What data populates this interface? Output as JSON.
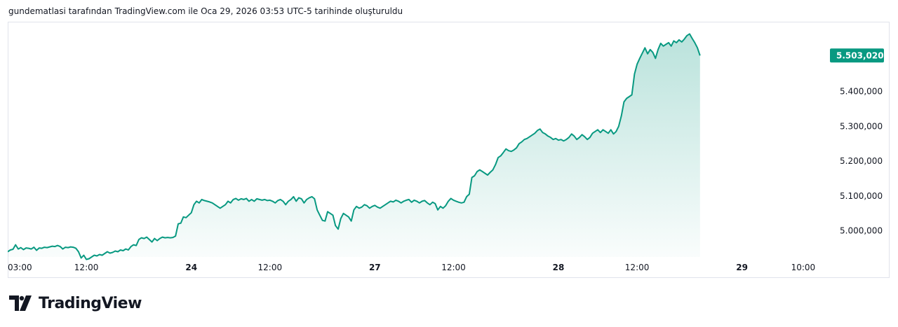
{
  "caption": "gundematlasi tarafından TradingView.com ile Oca 29, 2026 03:53 UTC-5 tarihinde oluşturuldu",
  "brand": {
    "name": "TradingView",
    "logo_icon": "tradingview-logo-icon"
  },
  "colors": {
    "line": "#089981",
    "fill_top": "#089981",
    "price_tag_bg": "#089981",
    "axis_text": "#131722",
    "frame": "#e0e3eb"
  },
  "chart_data": {
    "type": "area",
    "title": "",
    "xlabel": "",
    "ylabel": "",
    "y_range": [
      4925000,
      5600000
    ],
    "grid": false,
    "legend": "none",
    "current_price": 5503020,
    "current_price_label": "5.503,020",
    "y_ticks": [
      {
        "value": 5400000,
        "label": "5.400,000"
      },
      {
        "value": 5300000,
        "label": "5.300,000"
      },
      {
        "value": 5200000,
        "label": "5.200,000"
      },
      {
        "value": 5100000,
        "label": "5.100,000"
      },
      {
        "value": 5000000,
        "label": "5.000,000"
      }
    ],
    "x_ticks": [
      {
        "t": 0,
        "label": "03:00",
        "bold": false
      },
      {
        "t": 9,
        "label": "12:00",
        "bold": false
      },
      {
        "t": 21,
        "label": "24",
        "bold": true
      },
      {
        "t": 30,
        "label": "12:00",
        "bold": false
      },
      {
        "t": 42,
        "label": "27",
        "bold": true
      },
      {
        "t": 51,
        "label": "12:00",
        "bold": false
      },
      {
        "t": 63,
        "label": "28",
        "bold": true
      },
      {
        "t": 72,
        "label": "12:00",
        "bold": false
      },
      {
        "t": 84,
        "label": "29",
        "bold": true
      },
      {
        "t": 91,
        "label": "10:00",
        "bold": false
      }
    ],
    "series": [
      {
        "values": [
          [
            0.0,
            4940000
          ],
          [
            0.3,
            4945000
          ],
          [
            0.6,
            4947000
          ],
          [
            0.9,
            4960000
          ],
          [
            1.2,
            4948000
          ],
          [
            1.5,
            4952000
          ],
          [
            1.8,
            4946000
          ],
          [
            2.1,
            4951000
          ],
          [
            2.4,
            4950000
          ],
          [
            2.7,
            4948000
          ],
          [
            3.0,
            4953000
          ],
          [
            3.3,
            4944000
          ],
          [
            3.6,
            4951000
          ],
          [
            3.9,
            4950000
          ],
          [
            4.2,
            4953000
          ],
          [
            4.5,
            4952000
          ],
          [
            4.8,
            4954000
          ],
          [
            5.1,
            4956000
          ],
          [
            5.4,
            4955000
          ],
          [
            5.7,
            4958000
          ],
          [
            6.0,
            4955000
          ],
          [
            6.3,
            4948000
          ],
          [
            6.6,
            4953000
          ],
          [
            6.9,
            4952000
          ],
          [
            7.2,
            4954000
          ],
          [
            7.5,
            4953000
          ],
          [
            7.8,
            4950000
          ],
          [
            8.1,
            4940000
          ],
          [
            8.4,
            4922000
          ],
          [
            8.7,
            4930000
          ],
          [
            9.0,
            4918000
          ],
          [
            9.3,
            4920000
          ],
          [
            9.6,
            4925000
          ],
          [
            9.9,
            4930000
          ],
          [
            10.2,
            4928000
          ],
          [
            10.5,
            4932000
          ],
          [
            10.8,
            4930000
          ],
          [
            11.1,
            4935000
          ],
          [
            11.4,
            4940000
          ],
          [
            11.7,
            4936000
          ],
          [
            12.0,
            4938000
          ],
          [
            12.3,
            4942000
          ],
          [
            12.6,
            4940000
          ],
          [
            12.9,
            4945000
          ],
          [
            13.2,
            4943000
          ],
          [
            13.5,
            4948000
          ],
          [
            13.8,
            4945000
          ],
          [
            14.1,
            4955000
          ],
          [
            14.4,
            4960000
          ],
          [
            14.7,
            4958000
          ],
          [
            15.0,
            4975000
          ],
          [
            15.3,
            4980000
          ],
          [
            15.6,
            4978000
          ],
          [
            15.9,
            4982000
          ],
          [
            16.2,
            4975000
          ],
          [
            16.5,
            4968000
          ],
          [
            16.8,
            4978000
          ],
          [
            17.1,
            4972000
          ],
          [
            17.4,
            4978000
          ],
          [
            17.7,
            4982000
          ],
          [
            18.0,
            4980000
          ],
          [
            18.3,
            4981000
          ],
          [
            18.6,
            4980000
          ],
          [
            18.9,
            4981000
          ],
          [
            19.2,
            4985000
          ],
          [
            19.5,
            5020000
          ],
          [
            19.8,
            5022000
          ],
          [
            20.1,
            5040000
          ],
          [
            20.4,
            5038000
          ],
          [
            20.7,
            5045000
          ],
          [
            21.0,
            5052000
          ],
          [
            21.3,
            5075000
          ],
          [
            21.6,
            5085000
          ],
          [
            21.9,
            5080000
          ],
          [
            22.2,
            5090000
          ],
          [
            22.5,
            5087000
          ],
          [
            22.8,
            5085000
          ],
          [
            23.1,
            5083000
          ],
          [
            23.4,
            5080000
          ],
          [
            23.7,
            5075000
          ],
          [
            24.0,
            5070000
          ],
          [
            24.3,
            5065000
          ],
          [
            24.6,
            5070000
          ],
          [
            24.9,
            5075000
          ],
          [
            25.2,
            5085000
          ],
          [
            25.5,
            5080000
          ],
          [
            25.8,
            5090000
          ],
          [
            26.1,
            5093000
          ],
          [
            26.4,
            5088000
          ],
          [
            26.7,
            5092000
          ],
          [
            27.0,
            5090000
          ],
          [
            27.3,
            5093000
          ],
          [
            27.6,
            5085000
          ],
          [
            27.9,
            5090000
          ],
          [
            28.2,
            5085000
          ],
          [
            28.5,
            5092000
          ],
          [
            28.8,
            5090000
          ],
          [
            29.1,
            5088000
          ],
          [
            29.4,
            5090000
          ],
          [
            29.7,
            5087000
          ],
          [
            30.0,
            5088000
          ],
          [
            30.3,
            5085000
          ],
          [
            30.6,
            5080000
          ],
          [
            30.9,
            5087000
          ],
          [
            31.2,
            5090000
          ],
          [
            31.5,
            5085000
          ],
          [
            31.8,
            5075000
          ],
          [
            32.1,
            5085000
          ],
          [
            32.4,
            5090000
          ],
          [
            32.7,
            5098000
          ],
          [
            33.0,
            5085000
          ],
          [
            33.3,
            5095000
          ],
          [
            33.6,
            5092000
          ],
          [
            33.9,
            5080000
          ],
          [
            34.2,
            5090000
          ],
          [
            34.5,
            5095000
          ],
          [
            34.8,
            5098000
          ],
          [
            35.1,
            5092000
          ],
          [
            35.4,
            5060000
          ],
          [
            35.7,
            5045000
          ],
          [
            36.0,
            5030000
          ],
          [
            36.3,
            5028000
          ],
          [
            36.6,
            5055000
          ],
          [
            36.9,
            5050000
          ],
          [
            37.2,
            5045000
          ],
          [
            37.5,
            5015000
          ],
          [
            37.8,
            5005000
          ],
          [
            38.1,
            5035000
          ],
          [
            38.4,
            5050000
          ],
          [
            38.7,
            5045000
          ],
          [
            39.0,
            5040000
          ],
          [
            39.3,
            5028000
          ],
          [
            39.6,
            5060000
          ],
          [
            39.9,
            5070000
          ],
          [
            40.2,
            5065000
          ],
          [
            40.5,
            5068000
          ],
          [
            40.8,
            5075000
          ],
          [
            41.1,
            5072000
          ],
          [
            41.4,
            5065000
          ],
          [
            41.7,
            5070000
          ],
          [
            42.0,
            5073000
          ],
          [
            42.3,
            5068000
          ],
          [
            42.6,
            5065000
          ],
          [
            42.9,
            5070000
          ],
          [
            43.2,
            5075000
          ],
          [
            43.5,
            5080000
          ],
          [
            43.8,
            5085000
          ],
          [
            44.1,
            5083000
          ],
          [
            44.4,
            5088000
          ],
          [
            44.7,
            5085000
          ],
          [
            45.0,
            5080000
          ],
          [
            45.3,
            5085000
          ],
          [
            45.6,
            5088000
          ],
          [
            45.9,
            5090000
          ],
          [
            46.2,
            5082000
          ],
          [
            46.5,
            5088000
          ],
          [
            46.8,
            5085000
          ],
          [
            47.1,
            5080000
          ],
          [
            47.4,
            5085000
          ],
          [
            47.7,
            5087000
          ],
          [
            48.0,
            5080000
          ],
          [
            48.3,
            5075000
          ],
          [
            48.6,
            5082000
          ],
          [
            48.9,
            5078000
          ],
          [
            49.2,
            5060000
          ],
          [
            49.5,
            5070000
          ],
          [
            49.8,
            5065000
          ],
          [
            50.1,
            5072000
          ],
          [
            50.4,
            5085000
          ],
          [
            50.7,
            5093000
          ],
          [
            51.0,
            5088000
          ],
          [
            51.3,
            5085000
          ],
          [
            51.6,
            5082000
          ],
          [
            51.9,
            5080000
          ],
          [
            52.2,
            5082000
          ],
          [
            52.5,
            5098000
          ],
          [
            52.8,
            5105000
          ],
          [
            53.1,
            5153000
          ],
          [
            53.4,
            5158000
          ],
          [
            53.7,
            5170000
          ],
          [
            54.0,
            5175000
          ],
          [
            54.3,
            5170000
          ],
          [
            54.6,
            5165000
          ],
          [
            54.9,
            5160000
          ],
          [
            55.2,
            5168000
          ],
          [
            55.5,
            5175000
          ],
          [
            55.8,
            5190000
          ],
          [
            56.1,
            5210000
          ],
          [
            56.4,
            5215000
          ],
          [
            56.7,
            5225000
          ],
          [
            57.0,
            5235000
          ],
          [
            57.3,
            5230000
          ],
          [
            57.6,
            5228000
          ],
          [
            57.9,
            5232000
          ],
          [
            58.2,
            5238000
          ],
          [
            58.5,
            5250000
          ],
          [
            58.8,
            5255000
          ],
          [
            59.1,
            5262000
          ],
          [
            59.4,
            5265000
          ],
          [
            59.7,
            5270000
          ],
          [
            60.0,
            5275000
          ],
          [
            60.3,
            5280000
          ],
          [
            60.6,
            5288000
          ],
          [
            60.9,
            5292000
          ],
          [
            61.2,
            5282000
          ],
          [
            61.5,
            5278000
          ],
          [
            61.8,
            5272000
          ],
          [
            62.1,
            5268000
          ],
          [
            62.4,
            5262000
          ],
          [
            62.7,
            5265000
          ],
          [
            63.0,
            5260000
          ],
          [
            63.3,
            5262000
          ],
          [
            63.6,
            5258000
          ],
          [
            63.9,
            5262000
          ],
          [
            64.2,
            5268000
          ],
          [
            64.5,
            5278000
          ],
          [
            64.8,
            5272000
          ],
          [
            65.1,
            5262000
          ],
          [
            65.4,
            5268000
          ],
          [
            65.7,
            5276000
          ],
          [
            66.0,
            5270000
          ],
          [
            66.3,
            5262000
          ],
          [
            66.6,
            5268000
          ],
          [
            66.9,
            5280000
          ],
          [
            67.2,
            5285000
          ],
          [
            67.5,
            5290000
          ],
          [
            67.8,
            5282000
          ],
          [
            68.1,
            5290000
          ],
          [
            68.4,
            5285000
          ],
          [
            68.7,
            5280000
          ],
          [
            69.0,
            5290000
          ],
          [
            69.3,
            5278000
          ],
          [
            69.6,
            5285000
          ],
          [
            69.9,
            5300000
          ],
          [
            70.2,
            5330000
          ],
          [
            70.5,
            5370000
          ],
          [
            70.8,
            5380000
          ],
          [
            71.1,
            5385000
          ],
          [
            71.4,
            5390000
          ],
          [
            71.7,
            5450000
          ],
          [
            72.0,
            5478000
          ],
          [
            72.3,
            5495000
          ],
          [
            72.6,
            5510000
          ],
          [
            72.9,
            5525000
          ],
          [
            73.2,
            5508000
          ],
          [
            73.5,
            5520000
          ],
          [
            73.8,
            5512000
          ],
          [
            74.1,
            5495000
          ],
          [
            74.4,
            5520000
          ],
          [
            74.7,
            5538000
          ],
          [
            75.0,
            5530000
          ],
          [
            75.3,
            5535000
          ],
          [
            75.6,
            5540000
          ],
          [
            75.9,
            5530000
          ],
          [
            76.2,
            5545000
          ],
          [
            76.5,
            5540000
          ],
          [
            76.8,
            5548000
          ],
          [
            77.1,
            5542000
          ],
          [
            77.4,
            5550000
          ],
          [
            77.7,
            5560000
          ],
          [
            78.0,
            5565000
          ],
          [
            78.3,
            5552000
          ],
          [
            78.6,
            5540000
          ],
          [
            78.9,
            5525000
          ],
          [
            79.2,
            5503020
          ]
        ]
      }
    ]
  }
}
